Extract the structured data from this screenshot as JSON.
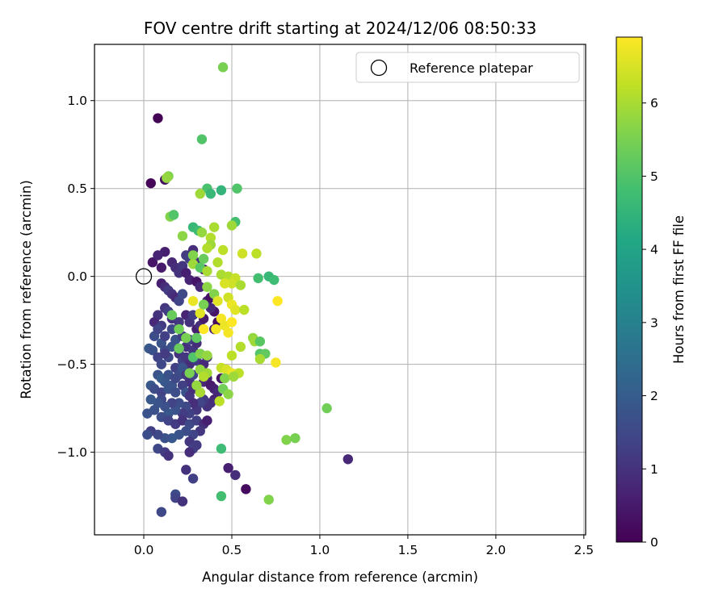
{
  "chart_data": {
    "type": "scatter",
    "title": "FOV centre drift starting at 2024/12/06 08:50:33",
    "xlabel": "Angular distance from reference (arcmin)",
    "ylabel": "Rotation from reference (arcmin)",
    "xlim": [
      -0.28,
      2.51
    ],
    "ylim": [
      -1.47,
      1.32
    ],
    "x_ticks": [
      0.0,
      0.5,
      1.0,
      1.5,
      2.0,
      2.5
    ],
    "x_tick_labels": [
      "0.0",
      "0.5",
      "1.0",
      "1.5",
      "2.0",
      "2.5"
    ],
    "y_ticks": [
      -1.0,
      -0.5,
      0.0,
      0.5,
      1.0
    ],
    "y_tick_labels": [
      "−1.0",
      "−0.5",
      "0.0",
      "0.5",
      "1.0"
    ],
    "grid": true,
    "legend": {
      "placement": "top-right",
      "entries": [
        "Reference platepar"
      ]
    },
    "reference_point": {
      "x": 0.0,
      "y": 0.0
    },
    "colorbar": {
      "label": "Hours from first FF file",
      "colormap": "viridis",
      "range": [
        0,
        6.9
      ],
      "ticks": [
        0,
        1,
        2,
        3,
        4,
        5,
        6
      ],
      "tick_labels": [
        "0",
        "1",
        "2",
        "3",
        "4",
        "5",
        "6"
      ]
    },
    "points": [
      [
        0.08,
        0.9,
        0.05
      ],
      [
        0.04,
        0.53,
        0.1
      ],
      [
        0.12,
        0.55,
        0.3
      ],
      [
        0.05,
        0.08,
        0.4
      ],
      [
        0.1,
        0.05,
        0.5
      ],
      [
        0.12,
        0.14,
        0.6
      ],
      [
        0.08,
        0.12,
        0.7
      ],
      [
        0.16,
        0.08,
        0.8
      ],
      [
        0.18,
        0.05,
        0.9
      ],
      [
        0.2,
        0.02,
        1.0
      ],
      [
        0.22,
        0.06,
        1.1
      ],
      [
        0.24,
        0.12,
        1.2
      ],
      [
        0.26,
        0.1,
        1.3
      ],
      [
        0.28,
        0.15,
        0.9
      ],
      [
        0.3,
        0.08,
        1.0
      ],
      [
        0.24,
        0.02,
        0.6
      ],
      [
        0.26,
        -0.02,
        0.7
      ],
      [
        0.3,
        -0.03,
        0.4
      ],
      [
        0.34,
        0.04,
        0.6
      ],
      [
        0.32,
        -0.06,
        0.8
      ],
      [
        0.1,
        -0.04,
        0.6
      ],
      [
        0.12,
        -0.06,
        0.9
      ],
      [
        0.14,
        -0.08,
        1.2
      ],
      [
        0.16,
        -0.1,
        1.0
      ],
      [
        0.18,
        -0.12,
        0.8
      ],
      [
        0.2,
        -0.14,
        1.4
      ],
      [
        0.22,
        -0.1,
        1.5
      ],
      [
        0.12,
        -0.18,
        1.1
      ],
      [
        0.14,
        -0.2,
        1.3
      ],
      [
        0.08,
        -0.22,
        1.0
      ],
      [
        0.06,
        -0.26,
        0.8
      ],
      [
        0.1,
        -0.28,
        1.2
      ],
      [
        0.16,
        -0.24,
        0.9
      ],
      [
        0.2,
        -0.26,
        1.1
      ],
      [
        0.24,
        -0.22,
        0.7
      ],
      [
        0.26,
        -0.26,
        1.0
      ],
      [
        0.28,
        -0.22,
        1.2
      ],
      [
        0.3,
        -0.3,
        0.6
      ],
      [
        0.32,
        -0.28,
        0.9
      ],
      [
        0.34,
        -0.24,
        0.5
      ],
      [
        0.36,
        -0.14,
        0.6
      ],
      [
        0.38,
        -0.12,
        0.3
      ],
      [
        0.4,
        -0.2,
        0.4
      ],
      [
        0.42,
        -0.26,
        0.2
      ],
      [
        0.4,
        -0.3,
        0.6
      ],
      [
        0.38,
        -0.18,
        0.8
      ],
      [
        0.06,
        -0.34,
        1.6
      ],
      [
        0.08,
        -0.3,
        1.4
      ],
      [
        0.1,
        -0.38,
        1.8
      ],
      [
        0.12,
        -0.34,
        1.3
      ],
      [
        0.16,
        -0.3,
        1.5
      ],
      [
        0.18,
        -0.36,
        1.7
      ],
      [
        0.22,
        -0.34,
        1.2
      ],
      [
        0.24,
        -0.4,
        1.0
      ],
      [
        0.26,
        -0.36,
        1.4
      ],
      [
        0.28,
        -0.42,
        1.1
      ],
      [
        0.3,
        -0.38,
        0.9
      ],
      [
        0.12,
        -0.42,
        1.6
      ],
      [
        0.14,
        -0.46,
        1.5
      ],
      [
        0.16,
        -0.4,
        1.7
      ],
      [
        0.03,
        -0.41,
        1.9
      ],
      [
        0.05,
        -0.42,
        1.7
      ],
      [
        0.08,
        -0.46,
        1.4
      ],
      [
        0.1,
        -0.5,
        1.5
      ],
      [
        0.12,
        -0.44,
        1.2
      ],
      [
        0.2,
        -0.44,
        1.0
      ],
      [
        0.22,
        -0.48,
        1.3
      ],
      [
        0.24,
        -0.46,
        1.1
      ],
      [
        0.26,
        -0.5,
        0.9
      ],
      [
        0.28,
        -0.46,
        1.6
      ],
      [
        0.3,
        -0.48,
        1.2
      ],
      [
        0.32,
        -0.44,
        1.4
      ],
      [
        0.34,
        -0.5,
        0.8
      ],
      [
        0.36,
        -0.46,
        1.0
      ],
      [
        0.18,
        -0.52,
        1.3
      ],
      [
        0.2,
        -0.56,
        1.6
      ],
      [
        0.22,
        -0.52,
        1.8
      ],
      [
        0.24,
        -0.56,
        1.2
      ],
      [
        0.26,
        -0.6,
        1.0
      ],
      [
        0.28,
        -0.56,
        1.4
      ],
      [
        0.08,
        -0.56,
        1.8
      ],
      [
        0.1,
        -0.58,
        2.0
      ],
      [
        0.12,
        -0.6,
        1.9
      ],
      [
        0.14,
        -0.56,
        1.7
      ],
      [
        0.16,
        -0.62,
        1.8
      ],
      [
        0.18,
        -0.58,
        1.5
      ],
      [
        0.04,
        -0.62,
        1.9
      ],
      [
        0.06,
        -0.64,
        1.6
      ],
      [
        0.1,
        -0.66,
        1.4
      ],
      [
        0.14,
        -0.64,
        1.8
      ],
      [
        0.18,
        -0.66,
        1.6
      ],
      [
        0.22,
        -0.62,
        1.3
      ],
      [
        0.24,
        -0.66,
        1.7
      ],
      [
        0.26,
        -0.68,
        1.1
      ],
      [
        0.28,
        -0.64,
        0.9
      ],
      [
        0.3,
        -0.62,
        1.2
      ],
      [
        0.32,
        -0.66,
        1.0
      ],
      [
        0.34,
        -0.6,
        0.8
      ],
      [
        0.36,
        -0.58,
        0.7
      ],
      [
        0.38,
        -0.62,
        0.5
      ],
      [
        0.4,
        -0.64,
        0.6
      ],
      [
        0.42,
        -0.66,
        0.8
      ],
      [
        0.44,
        -0.58,
        0.4
      ],
      [
        0.4,
        -0.7,
        0.7
      ],
      [
        0.38,
        -0.72,
        0.9
      ],
      [
        0.36,
        -0.74,
        1.0
      ],
      [
        0.34,
        -0.7,
        1.2
      ],
      [
        0.32,
        -0.72,
        1.4
      ],
      [
        0.3,
        -0.76,
        1.1
      ],
      [
        0.28,
        -0.72,
        0.9
      ],
      [
        0.26,
        -0.78,
        1.3
      ],
      [
        0.24,
        -0.74,
        1.5
      ],
      [
        0.22,
        -0.78,
        1.2
      ],
      [
        0.2,
        -0.72,
        1.6
      ],
      [
        0.18,
        -0.76,
        1.8
      ],
      [
        0.16,
        -0.72,
        1.4
      ],
      [
        0.14,
        -0.78,
        1.9
      ],
      [
        0.12,
        -0.74,
        1.7
      ],
      [
        0.1,
        -0.7,
        1.5
      ],
      [
        0.08,
        -0.72,
        1.8
      ],
      [
        0.04,
        -0.7,
        1.9
      ],
      [
        0.06,
        -0.76,
        1.7
      ],
      [
        0.02,
        -0.78,
        1.8
      ],
      [
        0.1,
        -0.8,
        1.6
      ],
      [
        0.14,
        -0.82,
        1.4
      ],
      [
        0.18,
        -0.84,
        1.2
      ],
      [
        0.22,
        -0.82,
        1.0
      ],
      [
        0.26,
        -0.84,
        1.5
      ],
      [
        0.3,
        -0.82,
        1.3
      ],
      [
        0.34,
        -0.84,
        0.9
      ],
      [
        0.36,
        -0.82,
        0.6
      ],
      [
        0.32,
        -0.88,
        1.1
      ],
      [
        0.28,
        -0.9,
        1.4
      ],
      [
        0.24,
        -0.88,
        1.6
      ],
      [
        0.2,
        -0.9,
        1.8
      ],
      [
        0.16,
        -0.92,
        1.9
      ],
      [
        0.12,
        -0.92,
        1.7
      ],
      [
        0.08,
        -0.9,
        1.5
      ],
      [
        0.04,
        -0.88,
        1.3
      ],
      [
        0.02,
        -0.9,
        1.6
      ],
      [
        0.08,
        -0.98,
        1.5
      ],
      [
        0.12,
        -1.0,
        1.2
      ],
      [
        0.14,
        -1.02,
        1.0
      ],
      [
        0.26,
        -0.94,
        1.1
      ],
      [
        0.28,
        -0.98,
        1.4
      ],
      [
        0.26,
        -1.0,
        0.9
      ],
      [
        0.3,
        -0.96,
        1.2
      ],
      [
        0.24,
        -1.1,
        1.0
      ],
      [
        0.28,
        -1.15,
        1.3
      ],
      [
        0.18,
        -1.24,
        1.6
      ],
      [
        0.18,
        -1.26,
        1.4
      ],
      [
        0.22,
        -1.28,
        1.0
      ],
      [
        0.1,
        -1.34,
        1.5
      ],
      [
        0.48,
        -1.09,
        0.6
      ],
      [
        0.52,
        -1.13,
        0.9
      ],
      [
        0.58,
        -1.21,
        0.2
      ],
      [
        1.16,
        -1.04,
        0.8
      ],
      [
        0.44,
        -1.25,
        4.8
      ],
      [
        0.71,
        -1.27,
        5.6
      ],
      [
        0.44,
        -0.98,
        4.7
      ],
      [
        0.81,
        -0.93,
        5.6
      ],
      [
        0.86,
        -0.92,
        5.5
      ],
      [
        1.04,
        -0.75,
        5.4
      ],
      [
        0.45,
        1.19,
        5.5
      ],
      [
        0.33,
        0.78,
        5.0
      ],
      [
        0.14,
        0.57,
        5.6
      ],
      [
        0.13,
        0.56,
        5.8
      ],
      [
        0.36,
        0.5,
        4.9
      ],
      [
        0.38,
        0.47,
        4.6
      ],
      [
        0.44,
        0.49,
        4.5
      ],
      [
        0.53,
        0.5,
        5.0
      ],
      [
        0.32,
        0.47,
        5.9
      ],
      [
        0.15,
        0.34,
        5.6
      ],
      [
        0.17,
        0.35,
        5.0
      ],
      [
        0.52,
        0.31,
        4.8
      ],
      [
        0.5,
        0.29,
        5.9
      ],
      [
        0.28,
        0.28,
        4.6
      ],
      [
        0.31,
        0.26,
        4.7
      ],
      [
        0.33,
        0.25,
        5.8
      ],
      [
        0.4,
        0.28,
        6.0
      ],
      [
        0.22,
        0.23,
        5.7
      ],
      [
        0.38,
        0.22,
        6.1
      ],
      [
        0.38,
        0.18,
        5.9
      ],
      [
        0.36,
        0.16,
        6.1
      ],
      [
        0.45,
        0.15,
        6.2
      ],
      [
        0.56,
        0.13,
        6.4
      ],
      [
        0.64,
        0.13,
        6.2
      ],
      [
        0.28,
        0.12,
        5.6
      ],
      [
        0.34,
        0.1,
        5.3
      ],
      [
        0.42,
        0.08,
        6.1
      ],
      [
        0.28,
        0.07,
        5.9
      ],
      [
        0.32,
        0.05,
        5.1
      ],
      [
        0.36,
        0.03,
        6.0
      ],
      [
        0.44,
        0.01,
        6.0
      ],
      [
        0.48,
        0.0,
        6.1
      ],
      [
        0.52,
        -0.01,
        6.3
      ],
      [
        0.5,
        -0.04,
        6.4
      ],
      [
        0.55,
        -0.05,
        6.0
      ],
      [
        0.36,
        -0.06,
        5.7
      ],
      [
        0.4,
        -0.1,
        5.6
      ],
      [
        0.46,
        -0.04,
        6.5
      ],
      [
        0.48,
        -0.12,
        6.4
      ],
      [
        0.42,
        -0.14,
        6.6
      ],
      [
        0.5,
        -0.16,
        6.7
      ],
      [
        0.52,
        -0.19,
        6.6
      ],
      [
        0.57,
        -0.19,
        6.2
      ],
      [
        0.65,
        -0.01,
        4.8
      ],
      [
        0.71,
        0.0,
        4.6
      ],
      [
        0.74,
        -0.02,
        4.7
      ],
      [
        0.76,
        -0.14,
        6.9
      ],
      [
        0.44,
        -0.24,
        6.8
      ],
      [
        0.46,
        -0.28,
        6.7
      ],
      [
        0.5,
        -0.26,
        6.9
      ],
      [
        0.41,
        -0.3,
        6.8
      ],
      [
        0.48,
        -0.32,
        6.8
      ],
      [
        0.32,
        -0.21,
        6.6
      ],
      [
        0.34,
        -0.3,
        6.9
      ],
      [
        0.28,
        -0.14,
        6.7
      ],
      [
        0.34,
        -0.16,
        5.5
      ],
      [
        0.16,
        -0.22,
        5.3
      ],
      [
        0.2,
        -0.3,
        5.4
      ],
      [
        0.24,
        -0.35,
        5.5
      ],
      [
        0.3,
        -0.35,
        5.2
      ],
      [
        0.62,
        -0.35,
        5.8
      ],
      [
        0.63,
        -0.37,
        5.9
      ],
      [
        0.66,
        -0.37,
        5.1
      ],
      [
        0.55,
        -0.4,
        6.1
      ],
      [
        0.66,
        -0.44,
        5.0
      ],
      [
        0.69,
        -0.44,
        5.2
      ],
      [
        0.5,
        -0.45,
        6.2
      ],
      [
        0.66,
        -0.47,
        6.0
      ],
      [
        0.75,
        -0.49,
        6.8
      ],
      [
        0.2,
        -0.41,
        5.3
      ],
      [
        0.28,
        -0.46,
        5.0
      ],
      [
        0.32,
        -0.44,
        5.6
      ],
      [
        0.36,
        -0.45,
        5.8
      ],
      [
        0.44,
        -0.52,
        6.3
      ],
      [
        0.47,
        -0.53,
        6.5
      ],
      [
        0.5,
        -0.55,
        6.7
      ],
      [
        0.54,
        -0.55,
        6.2
      ],
      [
        0.32,
        -0.53,
        5.8
      ],
      [
        0.36,
        -0.55,
        5.9
      ],
      [
        0.34,
        -0.57,
        6.1
      ],
      [
        0.46,
        -0.58,
        5.6
      ],
      [
        0.51,
        -0.57,
        5.9
      ],
      [
        0.45,
        -0.64,
        5.4
      ],
      [
        0.48,
        -0.67,
        5.7
      ],
      [
        0.32,
        -0.66,
        6.0
      ],
      [
        0.43,
        -0.71,
        6.2
      ],
      [
        0.3,
        -0.62,
        5.8
      ],
      [
        0.26,
        -0.55,
        5.5
      ]
    ]
  }
}
